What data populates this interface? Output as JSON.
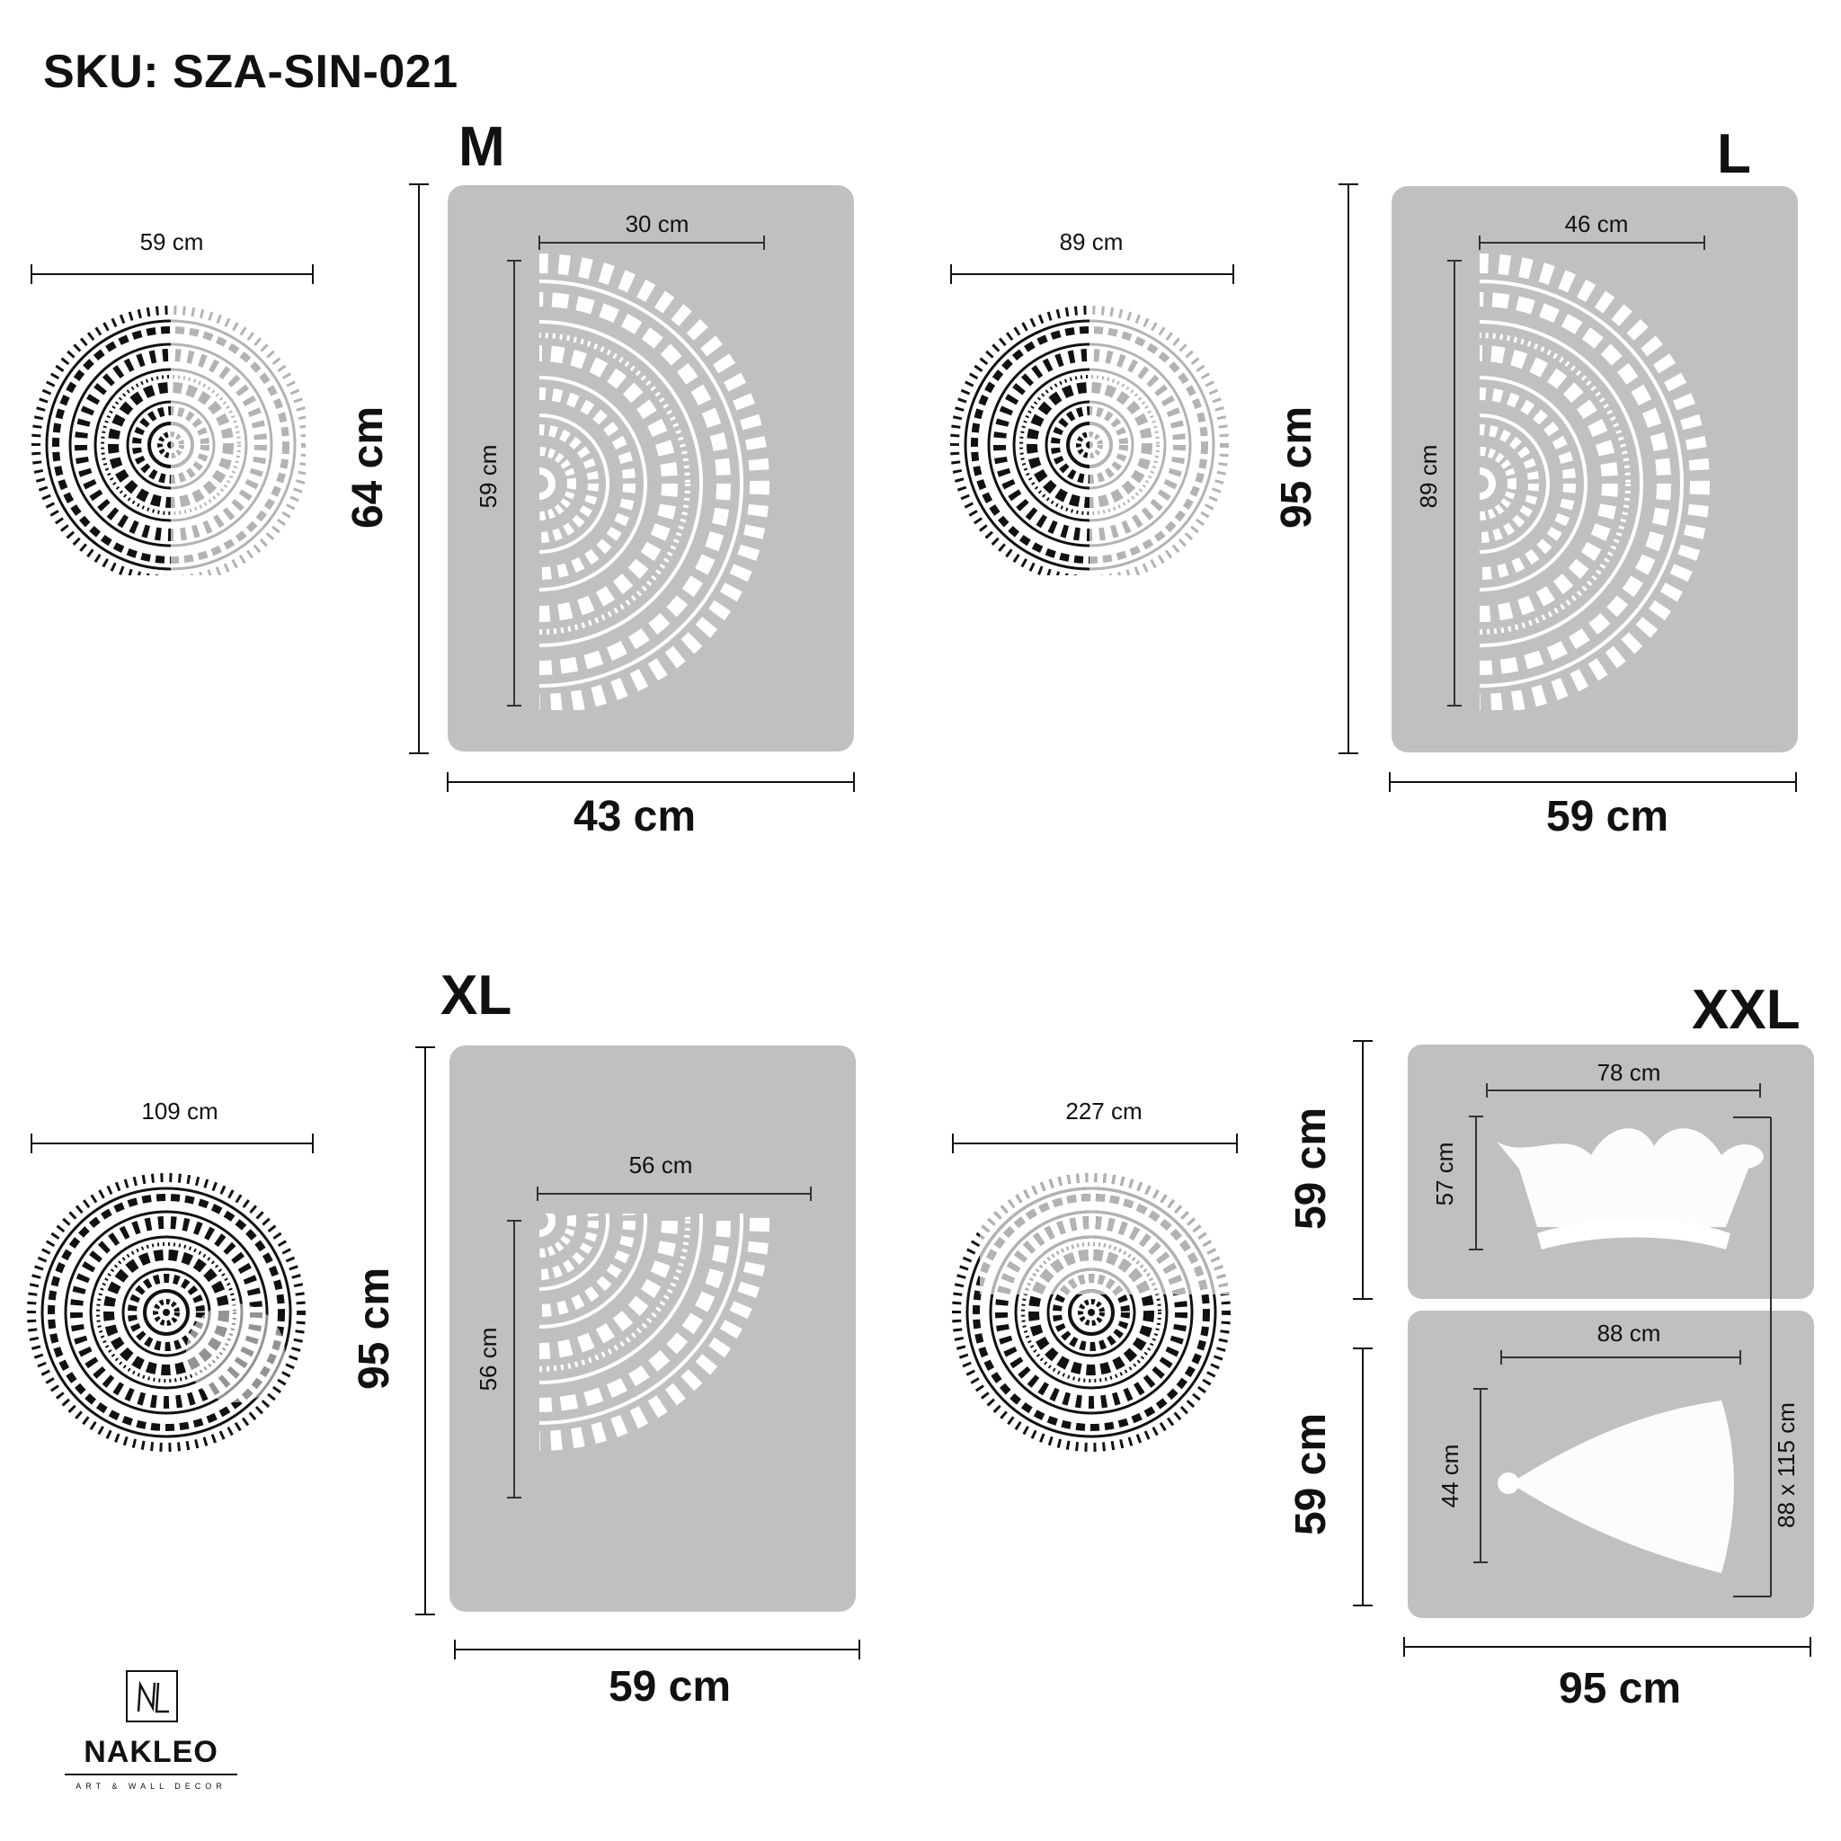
{
  "sku": "SKU: SZA-SIN-021",
  "colors": {
    "panel": "#c2bfbf",
    "ink": "#111111",
    "ink_light": "#b3b3b3",
    "stencil_cutout": "#ffffff"
  },
  "sizes": [
    {
      "id": "M",
      "label": "M",
      "mandala_width": "59 cm",
      "sheet_height": "64 cm",
      "sheet_width": "43 cm",
      "pattern_width": "30 cm",
      "pattern_height": "59 cm",
      "pattern_shape": "half-circle"
    },
    {
      "id": "L",
      "label": "L",
      "mandala_width": "89 cm",
      "sheet_height": "95 cm",
      "sheet_width": "59 cm",
      "pattern_width": "46 cm",
      "pattern_height": "89 cm",
      "pattern_shape": "half-circle"
    },
    {
      "id": "XL",
      "label": "XL",
      "mandala_width": "109 cm",
      "sheet_height": "95 cm",
      "sheet_width": "59 cm",
      "pattern_width": "56 cm",
      "pattern_height": "56 cm",
      "pattern_shape": "quarter-circle"
    },
    {
      "id": "XXL",
      "label": "XXL",
      "mandala_width": "227 cm",
      "sheet_top_height": "59 cm",
      "sheet_bottom_height": "59 cm",
      "sheet_width": "95 cm",
      "top_pattern_width": "78 cm",
      "top_pattern_height": "57 cm",
      "bottom_pattern_width": "88 cm",
      "bottom_pattern_height": "44 cm",
      "combined_label": "88 x 115 cm",
      "pattern_shape": "crown-and-segment"
    }
  ],
  "logo": {
    "name": "NAKLEO",
    "tagline": "ART & WALL DECOR",
    "icon": "nakleo-monogram-icon"
  }
}
